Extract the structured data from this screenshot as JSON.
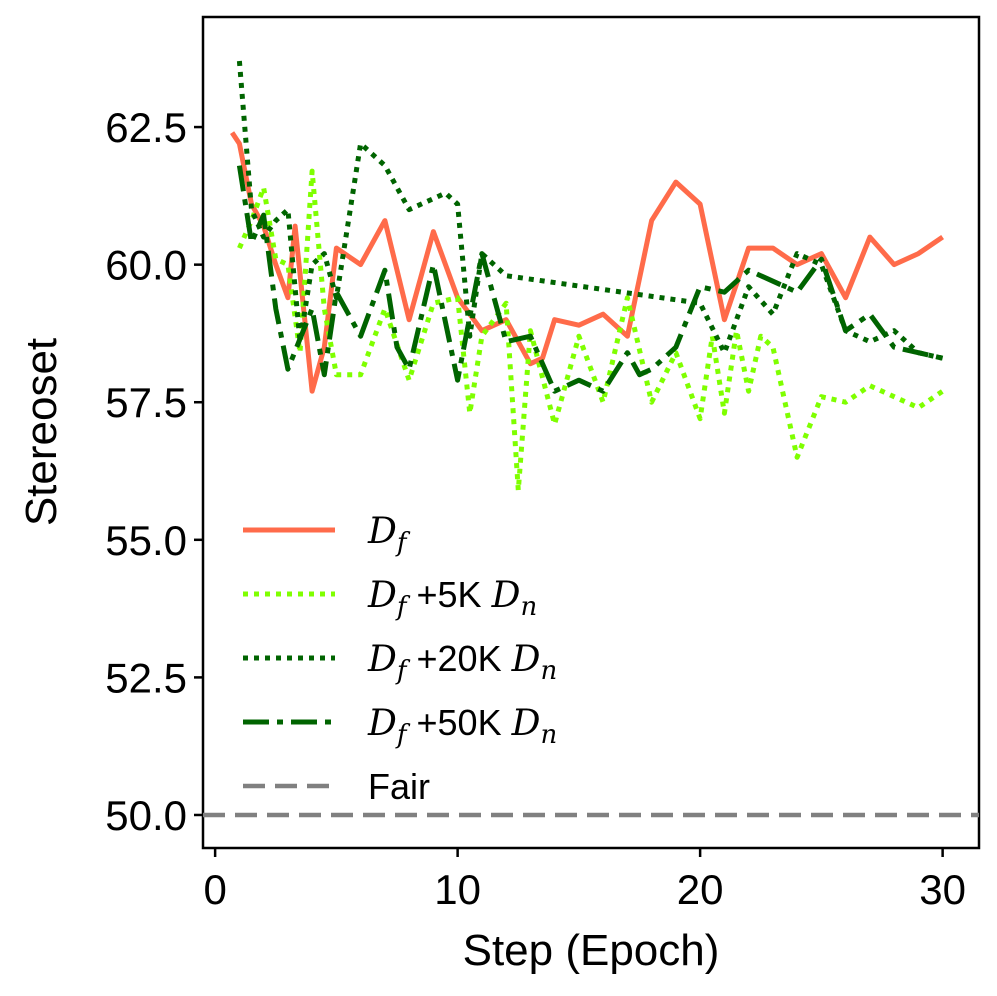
{
  "chart_data": {
    "type": "line",
    "title": "",
    "xlabel": "Step (Epoch)",
    "ylabel": "Stereoset",
    "xlim": [
      -0.5,
      31.5
    ],
    "ylim": [
      49.4,
      64.5
    ],
    "xticks": [
      0,
      10,
      20,
      30
    ],
    "xtick_labels": [
      "0",
      "10",
      "20",
      "30"
    ],
    "yticks": [
      50.0,
      52.5,
      55.0,
      57.5,
      60.0,
      62.5
    ],
    "ytick_labels": [
      "50.0",
      "52.5",
      "55.0",
      "57.5",
      "60.0",
      "62.5"
    ],
    "legend_position": "lower-left",
    "series": [
      {
        "name": "Df",
        "legend": {
          "math": "D",
          "sub": "f",
          "text": ""
        },
        "color": "#ff6b4a",
        "style": "solid",
        "x": [
          0.7,
          1,
          1.5,
          2,
          2.5,
          3,
          3.3,
          4,
          4.5,
          5,
          6,
          7,
          8,
          9,
          10,
          11,
          12,
          13,
          13.5,
          14,
          15,
          16,
          17,
          18,
          19,
          20,
          21,
          22,
          23,
          24,
          25,
          26,
          27,
          28,
          29,
          30
        ],
        "y": [
          62.4,
          62.2,
          61.1,
          60.7,
          60.0,
          59.4,
          60.7,
          57.7,
          58.5,
          60.3,
          60.0,
          60.8,
          59.0,
          60.6,
          59.4,
          58.8,
          59.0,
          58.2,
          58.3,
          59.0,
          58.9,
          59.1,
          58.7,
          60.8,
          61.5,
          61.1,
          59.0,
          60.3,
          60.3,
          60.0,
          60.2,
          59.4,
          60.5,
          60.0,
          60.2,
          60.5
        ]
      },
      {
        "name": "Df +5K Dn",
        "legend": {
          "math": "D",
          "sub": "f",
          "text": "+5K",
          "math2": "D",
          "sub2": "n"
        },
        "color": "#7fff00",
        "style": "dotted",
        "x": [
          1,
          1.5,
          2,
          2.5,
          3,
          3.5,
          4,
          4.5,
          5,
          6,
          7,
          8,
          9,
          10,
          10.5,
          11,
          12,
          12.5,
          13,
          14,
          15,
          16,
          17,
          18,
          19,
          20,
          20.5,
          21,
          21.5,
          22,
          22.5,
          23,
          24,
          25,
          26,
          27,
          28,
          29,
          30
        ],
        "y": [
          60.3,
          60.8,
          61.4,
          60.1,
          60.0,
          58.4,
          61.7,
          59.2,
          58.0,
          58.0,
          59.2,
          57.9,
          59.3,
          59.4,
          57.3,
          58.7,
          59.3,
          55.9,
          58.8,
          57.1,
          58.7,
          57.5,
          59.4,
          57.5,
          58.4,
          57.2,
          58.7,
          57.3,
          58.8,
          57.7,
          58.7,
          58.5,
          56.5,
          57.6,
          57.5,
          57.8,
          57.6,
          57.4,
          57.7
        ]
      },
      {
        "name": "Df +20K Dn",
        "legend": {
          "math": "D",
          "sub": "f",
          "text": "+20K",
          "math2": "D",
          "sub2": "n"
        },
        "color": "#006400",
        "style": "dotted",
        "x": [
          1,
          1.5,
          2,
          2.5,
          3,
          3.5,
          4,
          4.5,
          5,
          6,
          6.5,
          7,
          8,
          9,
          9.5,
          10,
          10.5,
          11,
          12,
          20,
          21,
          22,
          23,
          24,
          25,
          26,
          27,
          28,
          29,
          30
        ],
        "y": [
          63.7,
          61.0,
          60.5,
          60.8,
          61.0,
          58.6,
          60.0,
          60.2,
          59.4,
          62.2,
          62.0,
          61.8,
          61.0,
          61.2,
          61.3,
          61.1,
          58.7,
          60.2,
          59.8,
          59.3,
          58.4,
          59.6,
          59.1,
          60.2,
          60.0,
          58.8,
          58.6,
          58.8,
          58.4,
          58.3
        ]
      },
      {
        "name": "Df +50K Dn",
        "legend": {
          "math": "D",
          "sub": "f",
          "text": "+50K",
          "math2": "D",
          "sub2": "n"
        },
        "color": "#006400",
        "style": "dashdot",
        "x": [
          1,
          1.5,
          2,
          2.5,
          3,
          4,
          4.5,
          5,
          6,
          7,
          7.5,
          8,
          9,
          10,
          11,
          12,
          13,
          14,
          15,
          16,
          17,
          17.5,
          18,
          19,
          20,
          21,
          22,
          23,
          24,
          25,
          26,
          27,
          28,
          29,
          30
        ],
        "y": [
          61.8,
          60.4,
          60.9,
          59.2,
          58.1,
          59.2,
          58.0,
          59.5,
          58.7,
          59.9,
          58.5,
          58.1,
          60.0,
          57.9,
          60.2,
          58.6,
          58.7,
          57.7,
          57.9,
          57.7,
          58.4,
          58.0,
          58.1,
          58.5,
          59.6,
          59.5,
          59.9,
          59.7,
          59.5,
          60.1,
          58.8,
          59.1,
          58.5,
          58.4,
          58.3
        ]
      },
      {
        "name": "Fair",
        "legend": {
          "text": "Fair"
        },
        "color": "#808080",
        "style": "dashed",
        "hline": 50.0,
        "x": [
          -0.5,
          31.5
        ],
        "y": [
          50.0,
          50.0
        ]
      }
    ]
  }
}
